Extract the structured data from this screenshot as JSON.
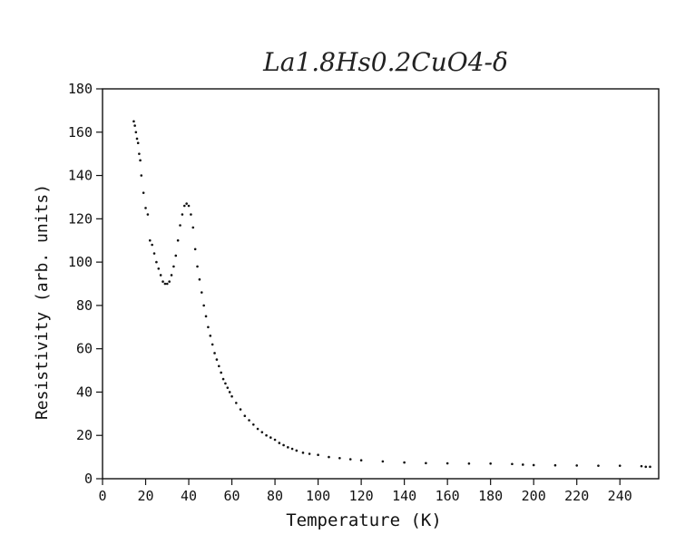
{
  "chart_data": {
    "type": "scatter",
    "title": "La1.8Hs0.2CuO4-δ",
    "xlabel": "Temperature (K)",
    "ylabel": "Resistivity (arb. units)",
    "xlim": [
      0,
      258
    ],
    "ylim": [
      0,
      180
    ],
    "x_ticks": [
      0,
      20,
      40,
      60,
      80,
      100,
      120,
      140,
      160,
      180,
      200,
      220,
      240
    ],
    "y_ticks": [
      0,
      20,
      40,
      60,
      80,
      100,
      120,
      140,
      160,
      180
    ],
    "grid": false,
    "series": [
      {
        "x": [
          14.5,
          15,
          15.5,
          16,
          16.5,
          17,
          17.5,
          18,
          19,
          20,
          21,
          22,
          23,
          24,
          25,
          26,
          27,
          28,
          29,
          30,
          31,
          32,
          33,
          34,
          35,
          36,
          37,
          38,
          39,
          40,
          41,
          42,
          43,
          44,
          45,
          46,
          47,
          48,
          49,
          50,
          51,
          52,
          53,
          54,
          55,
          56,
          57,
          58,
          59,
          60,
          62,
          64,
          66,
          68,
          70,
          72,
          74,
          76,
          78,
          80,
          82,
          84,
          86,
          88,
          90,
          93,
          96,
          100,
          105,
          110,
          115,
          120,
          130,
          140,
          150,
          160,
          170,
          180,
          190,
          195,
          200,
          210,
          220,
          230,
          240,
          250,
          252,
          254
        ],
        "y": [
          165,
          163,
          160,
          157,
          155,
          150,
          147,
          140,
          132,
          125,
          122,
          110,
          108,
          104,
          100,
          97,
          94,
          91,
          90,
          90,
          91,
          94,
          98,
          103,
          110,
          117,
          122,
          126,
          127,
          126,
          122,
          116,
          106,
          98,
          92,
          86,
          80,
          75,
          70,
          66,
          62,
          58,
          55,
          52,
          49,
          46,
          44,
          42,
          40,
          38,
          35,
          32,
          29,
          27,
          25,
          23,
          21.5,
          20,
          19,
          18,
          16.5,
          15.5,
          14.5,
          13.8,
          13,
          12,
          11.5,
          11,
          10,
          9.5,
          9,
          8.5,
          8,
          7.5,
          7.2,
          7.1,
          7,
          7,
          6.8,
          6.5,
          6.3,
          6.2,
          6.1,
          6,
          6,
          5.8,
          5.5,
          5.5
        ]
      }
    ]
  }
}
